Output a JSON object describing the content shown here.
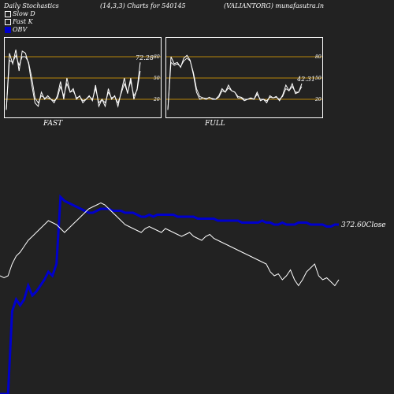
{
  "header": {
    "left": "Daily Stochastics",
    "middle": "(14,3,3) Charts for 540145",
    "right": "(VALIANTORG) munafasutra.in"
  },
  "legend": {
    "items": [
      {
        "label": "Slow  D",
        "swatch": "#222222"
      },
      {
        "label": "Fast K",
        "swatch": "#222222"
      },
      {
        "label": "OBV",
        "swatch": "#0000cc"
      }
    ]
  },
  "colors": {
    "background": "#222222",
    "obv": "#0000cc",
    "price": "#ffffff",
    "level_line": "#b8860b"
  },
  "chart_data": [
    {
      "type": "line",
      "panel": "FAST",
      "label": "FAST",
      "y_ticks": [
        "80",
        "50",
        "20"
      ],
      "levels": [
        80,
        50,
        20
      ],
      "ylim": [
        0,
        100
      ],
      "last_value_label": "72.28",
      "series": [
        {
          "values": [
            5,
            85,
            70,
            90,
            60,
            88,
            85,
            70,
            40,
            15,
            10,
            30,
            20,
            25,
            20,
            15,
            25,
            45,
            20,
            50,
            30,
            35,
            20,
            25,
            15,
            20,
            25,
            18,
            40,
            10,
            20,
            10,
            35,
            20,
            25,
            10,
            30,
            50,
            28,
            50,
            20,
            35,
            72
          ]
        },
        {
          "values": [
            5,
            75,
            72,
            82,
            68,
            80,
            80,
            72,
            50,
            22,
            15,
            25,
            22,
            22,
            20,
            18,
            22,
            38,
            25,
            42,
            30,
            32,
            22,
            24,
            18,
            20,
            24,
            20,
            35,
            15,
            20,
            15,
            30,
            22,
            24,
            15,
            28,
            42,
            30,
            45,
            25,
            33,
            60
          ]
        }
      ]
    },
    {
      "type": "line",
      "panel": "FULL",
      "label": "FULL",
      "y_ticks": [
        "80",
        "50",
        "20"
      ],
      "levels": [
        80,
        50,
        20
      ],
      "ylim": [
        0,
        100
      ],
      "last_value_label": "42.31",
      "series": [
        {
          "values": [
            5,
            80,
            70,
            72,
            65,
            78,
            82,
            75,
            55,
            30,
            20,
            22,
            20,
            23,
            20,
            20,
            25,
            35,
            30,
            40,
            32,
            30,
            22,
            22,
            18,
            20,
            22,
            20,
            30,
            18,
            20,
            15,
            25,
            22,
            24,
            18,
            26,
            40,
            32,
            42,
            28,
            30,
            42
          ]
        },
        {
          "values": [
            5,
            72,
            68,
            70,
            66,
            74,
            78,
            74,
            58,
            35,
            24,
            22,
            21,
            22,
            21,
            20,
            23,
            32,
            30,
            36,
            32,
            30,
            24,
            23,
            20,
            20,
            21,
            20,
            27,
            20,
            20,
            18,
            23,
            22,
            23,
            20,
            24,
            35,
            32,
            38,
            30,
            30,
            38
          ]
        }
      ]
    },
    {
      "type": "line",
      "panel": "OBV",
      "last_value_label": "372.60Close",
      "series": [
        {
          "name": "OBV",
          "values": [
            0,
            0,
            0,
            42,
            48,
            45,
            48,
            55,
            50,
            52,
            55,
            58,
            62,
            60,
            66,
            100,
            98,
            97,
            96,
            95,
            94,
            93,
            92,
            92,
            93,
            94,
            94,
            94,
            93,
            93,
            93,
            92,
            92,
            92,
            91,
            90,
            90,
            91,
            90,
            91,
            91,
            91,
            91,
            91,
            90,
            90,
            90,
            90,
            90,
            89,
            89,
            89,
            89,
            89,
            88,
            88,
            88,
            88,
            88,
            88,
            87,
            87,
            87,
            87,
            87,
            88,
            87,
            87,
            86,
            86,
            87,
            86,
            86,
            86,
            87,
            87,
            87,
            86,
            86,
            86,
            86,
            85,
            85,
            86,
            86
          ]
        },
        {
          "name": "Price",
          "values": [
            60,
            59,
            60,
            66,
            70,
            72,
            75,
            78,
            80,
            82,
            84,
            86,
            88,
            87,
            86,
            84,
            82,
            84,
            86,
            88,
            90,
            92,
            94,
            95,
            96,
            97,
            96,
            94,
            92,
            90,
            88,
            86,
            85,
            84,
            83,
            82,
            84,
            85,
            84,
            83,
            82,
            84,
            83,
            82,
            81,
            80,
            81,
            82,
            80,
            79,
            78,
            80,
            81,
            79,
            78,
            77,
            76,
            75,
            74,
            73,
            72,
            71,
            70,
            69,
            68,
            67,
            66,
            62,
            60,
            61,
            58,
            60,
            63,
            58,
            55,
            58,
            62,
            64,
            66,
            60,
            58,
            59,
            57,
            55,
            58
          ]
        }
      ]
    }
  ]
}
